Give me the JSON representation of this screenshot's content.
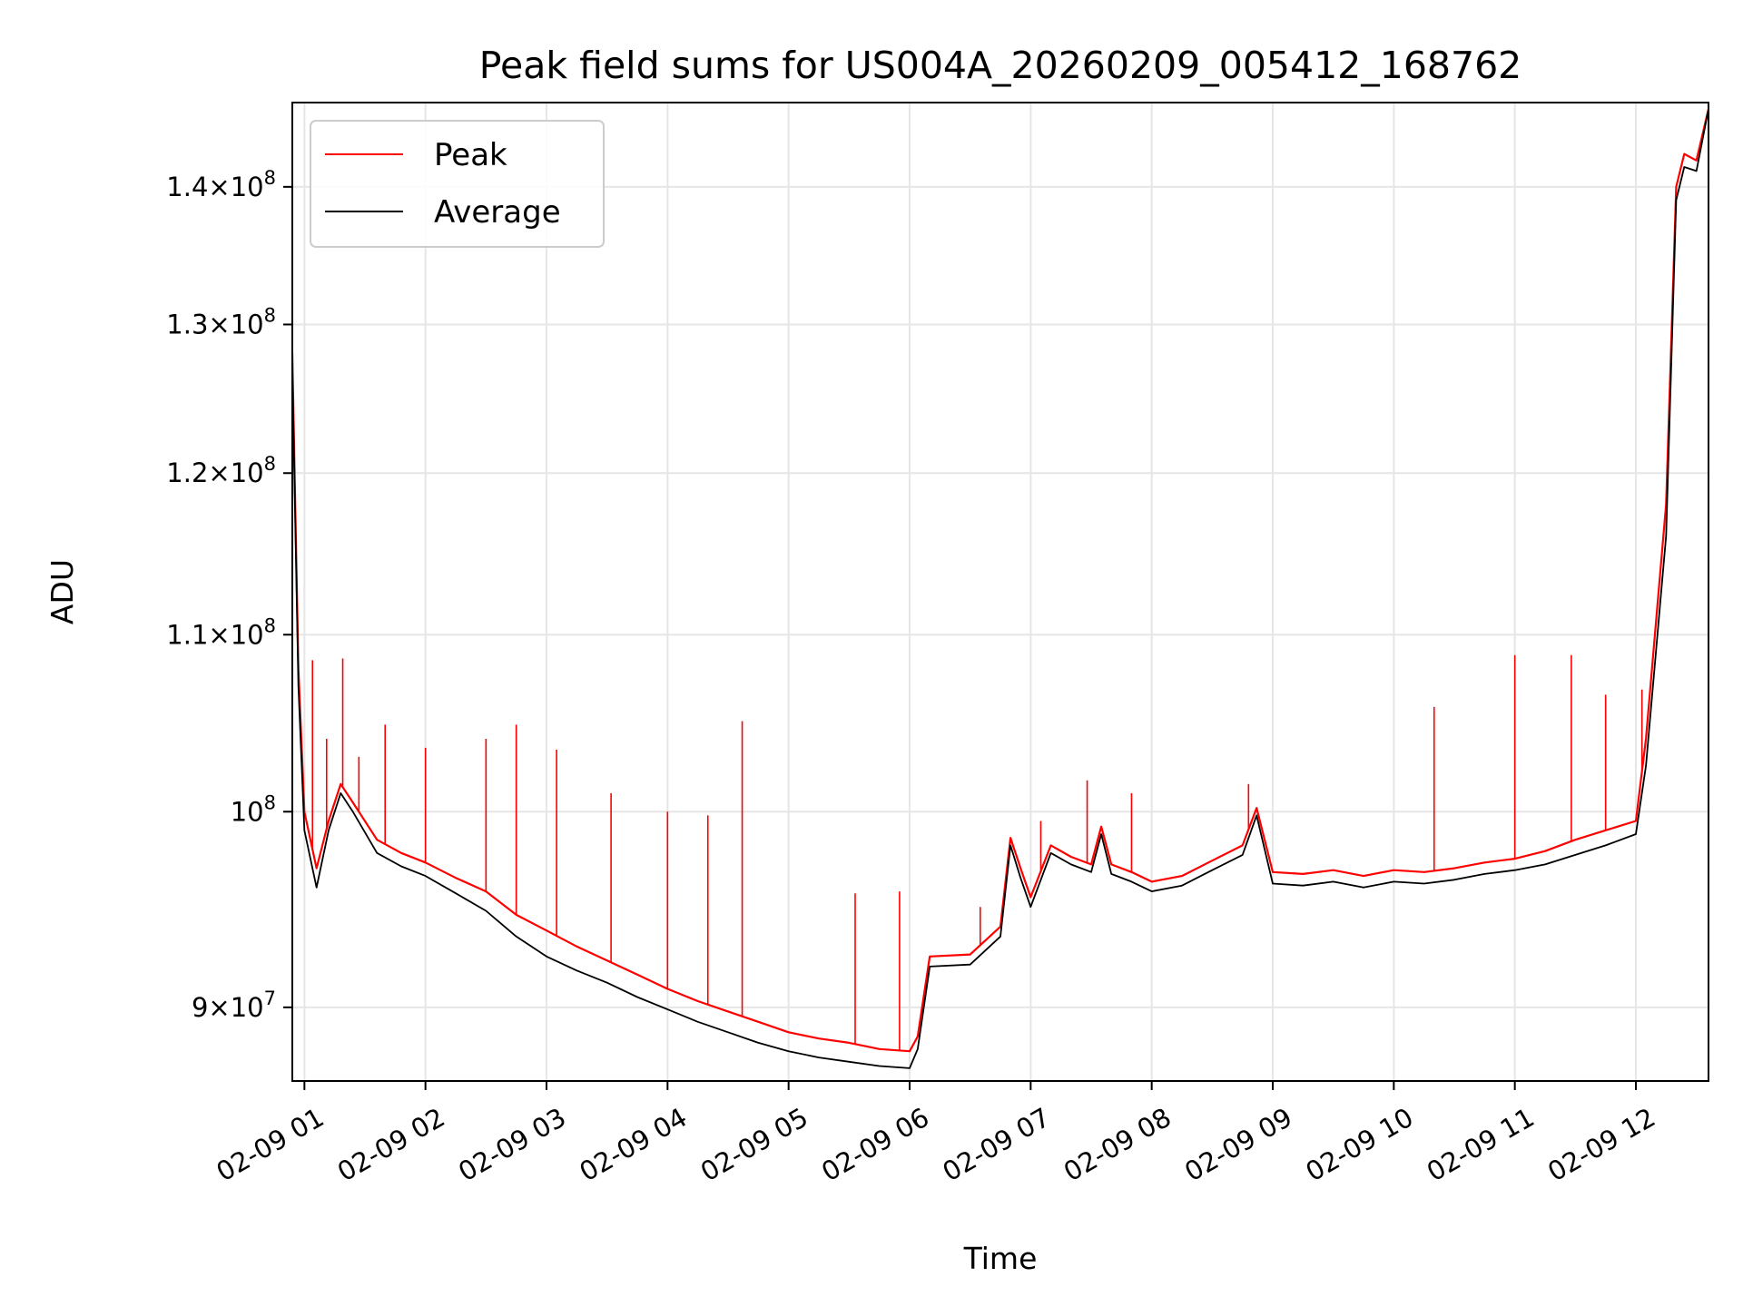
{
  "chart_data": {
    "type": "line",
    "title": "Peak field sums for US004A_20260209_005412_168762",
    "xlabel": "Time",
    "ylabel": "ADU",
    "y_scale": "log",
    "grid": true,
    "legend_position": "top-left",
    "xlim": [
      "02-09 00:54",
      "02-09 12:36"
    ],
    "ylim": [
      86500000,
      146500000
    ],
    "x_ticks": [
      "02-09 01",
      "02-09 02",
      "02-09 03",
      "02-09 04",
      "02-09 05",
      "02-09 06",
      "02-09 07",
      "02-09 08",
      "02-09 09",
      "02-09 10",
      "02-09 11",
      "02-09 12"
    ],
    "y_ticks": [
      {
        "value": 90000000,
        "mantissa": "9",
        "exponent": "7"
      },
      {
        "value": 100000000,
        "mantissa": "",
        "exponent": "8"
      },
      {
        "value": 110000000,
        "mantissa": "1.1",
        "exponent": "8"
      },
      {
        "value": 120000000,
        "mantissa": "1.2",
        "exponent": "8"
      },
      {
        "value": 130000000,
        "mantissa": "1.3",
        "exponent": "8"
      },
      {
        "value": 140000000,
        "mantissa": "1.4",
        "exponent": "8"
      }
    ],
    "series": [
      {
        "name": "Peak",
        "color": "#ff0000",
        "points": [
          [
            "02-09 00:54",
            128000000
          ],
          [
            "02-09 00:57",
            108000000
          ],
          [
            "02-09 01:00",
            100000000
          ],
          [
            "02-09 01:06",
            97000000
          ],
          [
            "02-09 01:12",
            99500000
          ],
          [
            "02-09 01:18",
            101500000
          ],
          [
            "02-09 01:24",
            100500000
          ],
          [
            "02-09 01:36",
            98500000
          ],
          [
            "02-09 01:48",
            97800000
          ],
          [
            "02-09 02:00",
            97300000
          ],
          [
            "02-09 02:15",
            96500000
          ],
          [
            "02-09 02:30",
            95800000
          ],
          [
            "02-09 02:45",
            94600000
          ],
          [
            "02-09 03:00",
            93800000
          ],
          [
            "02-09 03:15",
            93000000
          ],
          [
            "02-09 03:30",
            92300000
          ],
          [
            "02-09 03:45",
            91600000
          ],
          [
            "02-09 04:00",
            90900000
          ],
          [
            "02-09 04:15",
            90300000
          ],
          [
            "02-09 04:30",
            89800000
          ],
          [
            "02-09 04:45",
            89300000
          ],
          [
            "02-09 05:00",
            88800000
          ],
          [
            "02-09 05:15",
            88500000
          ],
          [
            "02-09 05:30",
            88300000
          ],
          [
            "02-09 05:45",
            88000000
          ],
          [
            "02-09 06:00",
            87900000
          ],
          [
            "02-09 06:04",
            88600000
          ],
          [
            "02-09 06:10",
            92500000
          ],
          [
            "02-09 06:30",
            92600000
          ],
          [
            "02-09 06:45",
            94000000
          ],
          [
            "02-09 06:50",
            98600000
          ],
          [
            "02-09 06:55",
            97000000
          ],
          [
            "02-09 07:00",
            95500000
          ],
          [
            "02-09 07:10",
            98200000
          ],
          [
            "02-09 07:20",
            97600000
          ],
          [
            "02-09 07:30",
            97200000
          ],
          [
            "02-09 07:35",
            99200000
          ],
          [
            "02-09 07:40",
            97200000
          ],
          [
            "02-09 07:50",
            96800000
          ],
          [
            "02-09 08:00",
            96300000
          ],
          [
            "02-09 08:15",
            96600000
          ],
          [
            "02-09 08:30",
            97400000
          ],
          [
            "02-09 08:45",
            98200000
          ],
          [
            "02-09 08:52",
            100200000
          ],
          [
            "02-09 09:00",
            96800000
          ],
          [
            "02-09 09:15",
            96700000
          ],
          [
            "02-09 09:30",
            96900000
          ],
          [
            "02-09 09:45",
            96600000
          ],
          [
            "02-09 10:00",
            96900000
          ],
          [
            "02-09 10:15",
            96800000
          ],
          [
            "02-09 10:30",
            97000000
          ],
          [
            "02-09 10:45",
            97300000
          ],
          [
            "02-09 11:00",
            97500000
          ],
          [
            "02-09 11:15",
            97900000
          ],
          [
            "02-09 11:30",
            98500000
          ],
          [
            "02-09 11:45",
            99000000
          ],
          [
            "02-09 12:00",
            99500000
          ],
          [
            "02-09 12:05",
            104000000
          ],
          [
            "02-09 12:15",
            118000000
          ],
          [
            "02-09 12:20",
            140000000
          ],
          [
            "02-09 12:24",
            142500000
          ],
          [
            "02-09 12:30",
            142000000
          ],
          [
            "02-09 12:36",
            146000000
          ]
        ]
      },
      {
        "name": "Average",
        "color": "#000000",
        "points": [
          [
            "02-09 00:54",
            127000000
          ],
          [
            "02-09 00:57",
            107000000
          ],
          [
            "02-09 01:00",
            99000000
          ],
          [
            "02-09 01:06",
            96000000
          ],
          [
            "02-09 01:12",
            99000000
          ],
          [
            "02-09 01:18",
            101000000
          ],
          [
            "02-09 01:24",
            100000000
          ],
          [
            "02-09 01:36",
            97800000
          ],
          [
            "02-09 01:48",
            97100000
          ],
          [
            "02-09 02:00",
            96600000
          ],
          [
            "02-09 02:15",
            95700000
          ],
          [
            "02-09 02:30",
            94800000
          ],
          [
            "02-09 02:45",
            93500000
          ],
          [
            "02-09 03:00",
            92500000
          ],
          [
            "02-09 03:15",
            91800000
          ],
          [
            "02-09 03:30",
            91200000
          ],
          [
            "02-09 03:45",
            90500000
          ],
          [
            "02-09 04:00",
            89900000
          ],
          [
            "02-09 04:15",
            89300000
          ],
          [
            "02-09 04:30",
            88800000
          ],
          [
            "02-09 04:45",
            88300000
          ],
          [
            "02-09 05:00",
            87900000
          ],
          [
            "02-09 05:15",
            87600000
          ],
          [
            "02-09 05:30",
            87400000
          ],
          [
            "02-09 05:45",
            87200000
          ],
          [
            "02-09 06:00",
            87100000
          ],
          [
            "02-09 06:04",
            88000000
          ],
          [
            "02-09 06:10",
            92000000
          ],
          [
            "02-09 06:30",
            92100000
          ],
          [
            "02-09 06:45",
            93500000
          ],
          [
            "02-09 06:50",
            98200000
          ],
          [
            "02-09 06:55",
            96500000
          ],
          [
            "02-09 07:00",
            95000000
          ],
          [
            "02-09 07:10",
            97800000
          ],
          [
            "02-09 07:20",
            97200000
          ],
          [
            "02-09 07:30",
            96800000
          ],
          [
            "02-09 07:35",
            98800000
          ],
          [
            "02-09 07:40",
            96700000
          ],
          [
            "02-09 07:50",
            96300000
          ],
          [
            "02-09 08:00",
            95800000
          ],
          [
            "02-09 08:15",
            96100000
          ],
          [
            "02-09 08:30",
            96900000
          ],
          [
            "02-09 08:45",
            97700000
          ],
          [
            "02-09 08:52",
            99800000
          ],
          [
            "02-09 09:00",
            96200000
          ],
          [
            "02-09 09:15",
            96100000
          ],
          [
            "02-09 09:30",
            96300000
          ],
          [
            "02-09 09:45",
            96000000
          ],
          [
            "02-09 10:00",
            96300000
          ],
          [
            "02-09 10:15",
            96200000
          ],
          [
            "02-09 10:30",
            96400000
          ],
          [
            "02-09 10:45",
            96700000
          ],
          [
            "02-09 11:00",
            96900000
          ],
          [
            "02-09 11:15",
            97200000
          ],
          [
            "02-09 11:30",
            97700000
          ],
          [
            "02-09 11:45",
            98200000
          ],
          [
            "02-09 12:00",
            98800000
          ],
          [
            "02-09 12:05",
            102500000
          ],
          [
            "02-09 12:15",
            116000000
          ],
          [
            "02-09 12:20",
            139000000
          ],
          [
            "02-09 12:24",
            141500000
          ],
          [
            "02-09 12:30",
            141200000
          ],
          [
            "02-09 12:36",
            146000000
          ]
        ]
      }
    ],
    "spikes": {
      "series": "Peak",
      "points": [
        [
          "02-09 01:04",
          108500000
        ],
        [
          "02-09 01:11",
          104000000
        ],
        [
          "02-09 01:19",
          108600000
        ],
        [
          "02-09 01:27",
          103000000
        ],
        [
          "02-09 01:40",
          104800000
        ],
        [
          "02-09 02:00",
          103500000
        ],
        [
          "02-09 02:30",
          104000000
        ],
        [
          "02-09 02:45",
          104800000
        ],
        [
          "02-09 03:05",
          103400000
        ],
        [
          "02-09 03:32",
          101000000
        ],
        [
          "02-09 04:00",
          100000000
        ],
        [
          "02-09 04:20",
          99800000
        ],
        [
          "02-09 04:37",
          105000000
        ],
        [
          "02-09 05:33",
          95700000
        ],
        [
          "02-09 05:55",
          95800000
        ],
        [
          "02-09 06:35",
          95000000
        ],
        [
          "02-09 07:05",
          99500000
        ],
        [
          "02-09 07:28",
          101700000
        ],
        [
          "02-09 07:50",
          101000000
        ],
        [
          "02-09 08:48",
          101500000
        ],
        [
          "02-09 10:20",
          105800000
        ],
        [
          "02-09 11:00",
          108800000
        ],
        [
          "02-09 11:28",
          108800000
        ],
        [
          "02-09 11:45",
          106500000
        ],
        [
          "02-09 12:03",
          106800000
        ]
      ]
    }
  }
}
